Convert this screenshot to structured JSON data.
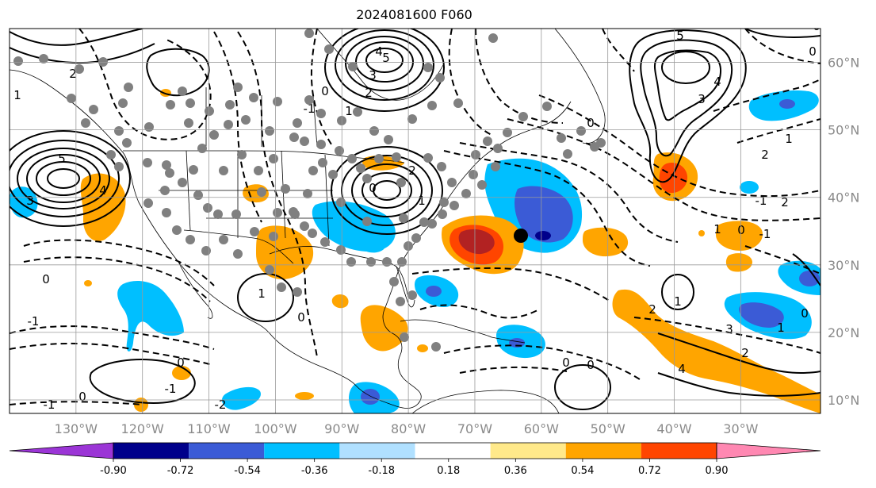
{
  "title": "2024081600 F060",
  "map": {
    "projection": "lat-lon",
    "lon_range": [
      -140,
      -18
    ],
    "lat_range": [
      8,
      65
    ],
    "grid": true,
    "lon_ticks": [
      "130°W",
      "120°W",
      "110°W",
      "100°W",
      "90°W",
      "80°W",
      "70°W",
      "60°W",
      "50°W",
      "40°W",
      "30°W"
    ],
    "lat_ticks": [
      "10°N",
      "20°N",
      "30°N",
      "40°N",
      "50°N",
      "60°N"
    ],
    "station_dot_color": "#808080",
    "marker_color": "#000000",
    "contour_color": "#000000",
    "contour_labels": [
      "5",
      "4",
      "3",
      "2",
      "1",
      "0",
      "-1",
      "0",
      "-1",
      "0",
      "5",
      "4",
      "3",
      "2",
      "1",
      "0",
      "-1",
      "2",
      "1",
      "0",
      "5",
      "4",
      "3",
      "2",
      "1",
      "0",
      "0",
      "-1",
      "1",
      "2",
      "0",
      "-1",
      "0",
      "1",
      "2",
      "3",
      "4",
      "2",
      "0",
      "1",
      "0",
      "1",
      "0",
      "-1",
      "-2",
      "0"
    ]
  },
  "colorbar": {
    "levels": [
      "-0.90",
      "-0.72",
      "-0.54",
      "-0.36",
      "-0.18",
      "0.18",
      "0.36",
      "0.54",
      "0.72",
      "0.90"
    ],
    "colors": [
      "#9b35d6",
      "#00008b",
      "#3b5bd6",
      "#00bfff",
      "#b0e0ff",
      "#ffffff",
      "#ffe98a",
      "#ffa500",
      "#ff4500",
      "#b22222",
      "#ff88b2"
    ]
  }
}
